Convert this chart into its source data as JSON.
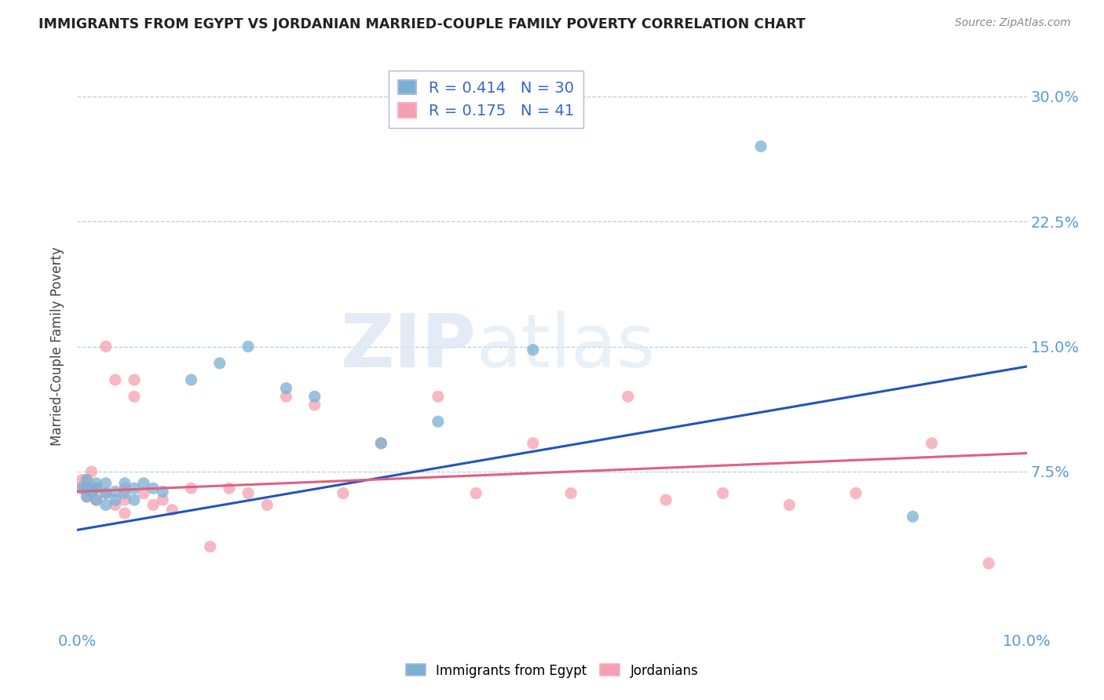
{
  "title": "IMMIGRANTS FROM EGYPT VS JORDANIAN MARRIED-COUPLE FAMILY POVERTY CORRELATION CHART",
  "source": "Source: ZipAtlas.com",
  "ylabel": "Married-Couple Family Poverty",
  "xlim": [
    0.0,
    0.1
  ],
  "ylim": [
    -0.02,
    0.32
  ],
  "yticks": [
    0.075,
    0.15,
    0.225,
    0.3
  ],
  "ytick_labels": [
    "7.5%",
    "15.0%",
    "22.5%",
    "30.0%"
  ],
  "blue_R": 0.414,
  "blue_N": 30,
  "pink_R": 0.175,
  "pink_N": 41,
  "blue_color": "#7BAFD4",
  "pink_color": "#F4A0B0",
  "blue_line_color": "#2255BB",
  "pink_line_color": "#E06080",
  "watermark_zip": "ZIP",
  "watermark_atlas": "atlas",
  "legend_label_blue": "Immigrants from Egypt",
  "legend_label_pink": "Jordanians",
  "blue_scatter_x": [
    0.0005,
    0.001,
    0.001,
    0.001,
    0.0015,
    0.002,
    0.002,
    0.002,
    0.003,
    0.003,
    0.003,
    0.004,
    0.004,
    0.005,
    0.005,
    0.006,
    0.006,
    0.007,
    0.008,
    0.009,
    0.012,
    0.015,
    0.018,
    0.022,
    0.025,
    0.032,
    0.038,
    0.048,
    0.072,
    0.088
  ],
  "blue_scatter_y": [
    0.065,
    0.06,
    0.065,
    0.07,
    0.063,
    0.058,
    0.065,
    0.068,
    0.055,
    0.062,
    0.068,
    0.058,
    0.063,
    0.062,
    0.068,
    0.058,
    0.065,
    0.068,
    0.065,
    0.063,
    0.13,
    0.14,
    0.15,
    0.125,
    0.12,
    0.092,
    0.105,
    0.148,
    0.27,
    0.048
  ],
  "pink_scatter_x": [
    0.0004,
    0.0005,
    0.001,
    0.001,
    0.001,
    0.0015,
    0.002,
    0.002,
    0.003,
    0.003,
    0.004,
    0.004,
    0.005,
    0.005,
    0.005,
    0.006,
    0.006,
    0.007,
    0.008,
    0.009,
    0.01,
    0.012,
    0.014,
    0.016,
    0.018,
    0.02,
    0.022,
    0.025,
    0.028,
    0.032,
    0.038,
    0.042,
    0.048,
    0.052,
    0.058,
    0.062,
    0.068,
    0.075,
    0.082,
    0.09,
    0.096
  ],
  "pink_scatter_y": [
    0.065,
    0.07,
    0.06,
    0.065,
    0.07,
    0.075,
    0.058,
    0.065,
    0.062,
    0.15,
    0.055,
    0.13,
    0.05,
    0.058,
    0.065,
    0.12,
    0.13,
    0.062,
    0.055,
    0.058,
    0.052,
    0.065,
    0.03,
    0.065,
    0.062,
    0.055,
    0.12,
    0.115,
    0.062,
    0.092,
    0.12,
    0.062,
    0.092,
    0.062,
    0.12,
    0.058,
    0.062,
    0.055,
    0.062,
    0.092,
    0.02
  ],
  "blue_line_x0": 0.0,
  "blue_line_y0": 0.04,
  "blue_line_x1": 0.1,
  "blue_line_y1": 0.138,
  "pink_line_x0": 0.0,
  "pink_line_y0": 0.063,
  "pink_line_x1": 0.1,
  "pink_line_y1": 0.086
}
